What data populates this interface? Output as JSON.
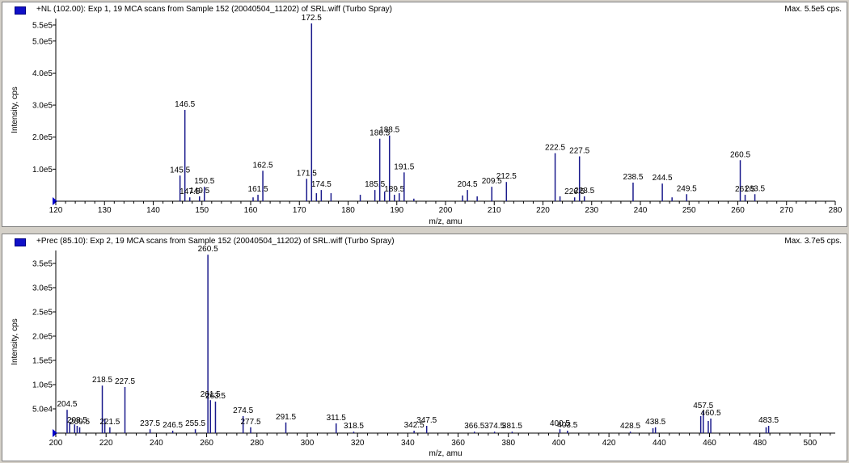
{
  "panels": [
    {
      "header": {
        "title": "+NL (102.00): Exp 1, 19 MCA scans from Sample 152 (20040504_11202) of SRL.wiff (Turbo Spray)",
        "max_label": "Max. 5.5e5 cps."
      }
    },
    {
      "header": {
        "title": "+Prec (85.10): Exp 2, 19 MCA scans from Sample 152 (20040504_11202) of SRL.wiff (Turbo Spray)",
        "max_label": "Max. 3.7e5 cps."
      }
    }
  ],
  "colors": {
    "peak": "#1a1a8c",
    "axis": "#000000",
    "marker": "#0000cc"
  },
  "chart_data": [
    {
      "type": "bar",
      "title": "+NL (102.00): Exp 1, 19 MCA scans from Sample 152 (20040504_11202) of SRL.wiff (Turbo Spray)",
      "xlabel": "m/z, amu",
      "ylabel": "Intensity, cps",
      "xlim": [
        120,
        280
      ],
      "ylim": [
        0,
        560000
      ],
      "x_ticks": [
        120,
        130,
        140,
        150,
        160,
        170,
        180,
        190,
        200,
        210,
        220,
        230,
        240,
        250,
        260,
        270,
        280
      ],
      "y_ticks": [
        {
          "value": 100000,
          "label": "1.0e5"
        },
        {
          "value": 200000,
          "label": "2.0e5"
        },
        {
          "value": 300000,
          "label": "3.0e5"
        },
        {
          "value": 400000,
          "label": "4.0e5"
        },
        {
          "value": 500000,
          "label": "5.0e5"
        },
        {
          "value": 550000,
          "label": "5.5e5"
        }
      ],
      "peaks": [
        {
          "x": 145.5,
          "y": 80000,
          "label": "145.5"
        },
        {
          "x": 146.5,
          "y": 285000,
          "label": "146.5"
        },
        {
          "x": 147.5,
          "y": 12000,
          "label": "147.5"
        },
        {
          "x": 149.5,
          "y": 15000,
          "label": "149.5"
        },
        {
          "x": 150.5,
          "y": 45000,
          "label": "150.5"
        },
        {
          "x": 160.5,
          "y": 12000,
          "label": ""
        },
        {
          "x": 161.5,
          "y": 20000,
          "label": "161.5"
        },
        {
          "x": 162.5,
          "y": 95000,
          "label": "162.5"
        },
        {
          "x": 171.5,
          "y": 70000,
          "label": "171.5"
        },
        {
          "x": 172.5,
          "y": 555000,
          "label": "172.5"
        },
        {
          "x": 173.5,
          "y": 25000,
          "label": ""
        },
        {
          "x": 174.5,
          "y": 35000,
          "label": "174.5"
        },
        {
          "x": 176.5,
          "y": 25000,
          "label": ""
        },
        {
          "x": 182.5,
          "y": 20000,
          "label": ""
        },
        {
          "x": 185.5,
          "y": 35000,
          "label": "185.5"
        },
        {
          "x": 186.5,
          "y": 195000,
          "label": "186.5"
        },
        {
          "x": 187.5,
          "y": 30000,
          "label": ""
        },
        {
          "x": 188.5,
          "y": 205000,
          "label": "188.5"
        },
        {
          "x": 189.5,
          "y": 20000,
          "label": "189.5"
        },
        {
          "x": 190.5,
          "y": 25000,
          "label": ""
        },
        {
          "x": 191.5,
          "y": 90000,
          "label": "191.5"
        },
        {
          "x": 193.5,
          "y": 8000,
          "label": ""
        },
        {
          "x": 203.5,
          "y": 18000,
          "label": ""
        },
        {
          "x": 204.5,
          "y": 35000,
          "label": "204.5"
        },
        {
          "x": 206.5,
          "y": 15000,
          "label": ""
        },
        {
          "x": 209.5,
          "y": 45000,
          "label": "209.5"
        },
        {
          "x": 212.5,
          "y": 60000,
          "label": "212.5"
        },
        {
          "x": 222.5,
          "y": 150000,
          "label": "222.5"
        },
        {
          "x": 223.5,
          "y": 15000,
          "label": ""
        },
        {
          "x": 226.5,
          "y": 12000,
          "label": "226.5"
        },
        {
          "x": 227.5,
          "y": 140000,
          "label": "227.5"
        },
        {
          "x": 228.5,
          "y": 15000,
          "label": "228.5"
        },
        {
          "x": 238.5,
          "y": 58000,
          "label": "238.5"
        },
        {
          "x": 244.5,
          "y": 55000,
          "label": "244.5"
        },
        {
          "x": 246.5,
          "y": 12000,
          "label": ""
        },
        {
          "x": 249.5,
          "y": 22000,
          "label": "249.5"
        },
        {
          "x": 260.5,
          "y": 128000,
          "label": "260.5"
        },
        {
          "x": 261.5,
          "y": 20000,
          "label": "261.5"
        },
        {
          "x": 263.5,
          "y": 22000,
          "label": "263.5"
        }
      ]
    },
    {
      "type": "bar",
      "title": "+Prec (85.10): Exp 2, 19 MCA scans from Sample 152 (20040504_11202) of SRL.wiff (Turbo Spray)",
      "xlabel": "m/z, amu",
      "ylabel": "Intensity, cps",
      "xlim": [
        200,
        510
      ],
      "ylim": [
        0,
        370000
      ],
      "x_ticks": [
        200,
        220,
        240,
        260,
        280,
        300,
        320,
        340,
        360,
        380,
        400,
        420,
        440,
        460,
        480,
        500
      ],
      "y_ticks": [
        {
          "value": 50000,
          "label": "5.0e4"
        },
        {
          "value": 100000,
          "label": "1.0e5"
        },
        {
          "value": 150000,
          "label": "1.5e5"
        },
        {
          "value": 200000,
          "label": "2.0e5"
        },
        {
          "value": 250000,
          "label": "2.5e5"
        },
        {
          "value": 300000,
          "label": "3.0e5"
        },
        {
          "value": 350000,
          "label": "3.5e5"
        }
      ],
      "peaks": [
        {
          "x": 204.5,
          "y": 48000,
          "label": "204.5"
        },
        {
          "x": 205.5,
          "y": 22000,
          "label": ""
        },
        {
          "x": 207.5,
          "y": 18000,
          "label": ""
        },
        {
          "x": 208.5,
          "y": 15000,
          "label": "208.5"
        },
        {
          "x": 209.5,
          "y": 12000,
          "label": "209.5"
        },
        {
          "x": 218.5,
          "y": 98000,
          "label": "218.5"
        },
        {
          "x": 219.5,
          "y": 30000,
          "label": ""
        },
        {
          "x": 221.5,
          "y": 12000,
          "label": "221.5"
        },
        {
          "x": 227.5,
          "y": 95000,
          "label": "227.5"
        },
        {
          "x": 237.5,
          "y": 8000,
          "label": "237.5"
        },
        {
          "x": 246.5,
          "y": 5000,
          "label": "246.5"
        },
        {
          "x": 255.5,
          "y": 8000,
          "label": "255.5"
        },
        {
          "x": 260.5,
          "y": 368000,
          "label": "260.5"
        },
        {
          "x": 261.5,
          "y": 68000,
          "label": "261.5"
        },
        {
          "x": 263.5,
          "y": 65000,
          "label": "263.5"
        },
        {
          "x": 274.5,
          "y": 35000,
          "label": "274.5"
        },
        {
          "x": 277.5,
          "y": 12000,
          "label": "277.5"
        },
        {
          "x": 291.5,
          "y": 22000,
          "label": "291.5"
        },
        {
          "x": 311.5,
          "y": 20000,
          "label": "311.5"
        },
        {
          "x": 318.5,
          "y": 3000,
          "label": "318.5"
        },
        {
          "x": 342.5,
          "y": 5000,
          "label": "342.5"
        },
        {
          "x": 347.5,
          "y": 15000,
          "label": "347.5"
        },
        {
          "x": 366.5,
          "y": 3000,
          "label": "366.5"
        },
        {
          "x": 374.5,
          "y": 3000,
          "label": "374.5"
        },
        {
          "x": 381.5,
          "y": 3000,
          "label": "381.5"
        },
        {
          "x": 400.5,
          "y": 8000,
          "label": "400.5"
        },
        {
          "x": 403.5,
          "y": 5000,
          "label": "403.5"
        },
        {
          "x": 428.5,
          "y": 3000,
          "label": "428.5"
        },
        {
          "x": 437.5,
          "y": 10000,
          "label": ""
        },
        {
          "x": 438.5,
          "y": 12000,
          "label": "438.5"
        },
        {
          "x": 456.5,
          "y": 35000,
          "label": ""
        },
        {
          "x": 457.5,
          "y": 45000,
          "label": "457.5"
        },
        {
          "x": 459.5,
          "y": 25000,
          "label": ""
        },
        {
          "x": 460.5,
          "y": 30000,
          "label": "460.5"
        },
        {
          "x": 482.5,
          "y": 12000,
          "label": ""
        },
        {
          "x": 483.5,
          "y": 15000,
          "label": "483.5"
        }
      ]
    }
  ]
}
